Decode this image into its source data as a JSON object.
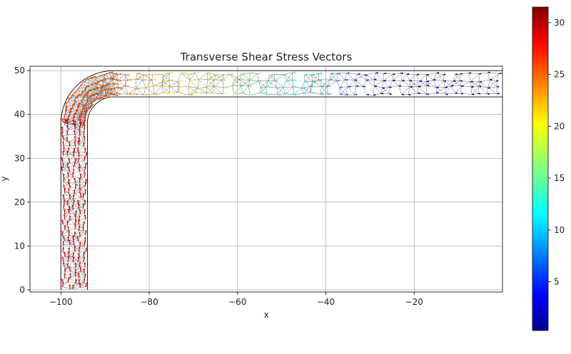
{
  "chart_data": {
    "type": "vector-field",
    "title": "Transverse Shear Stress Vectors",
    "xlabel": "x",
    "ylabel": "y",
    "xlim": [
      -107,
      0
    ],
    "ylim": [
      -0.5,
      51
    ],
    "x_ticks": [
      -100,
      -80,
      -60,
      -40,
      -20
    ],
    "y_ticks": [
      0,
      10,
      20,
      30,
      40,
      50
    ],
    "grid": true,
    "geometry": {
      "vertical_leg": {
        "x_outer": -100,
        "x_inner": -94,
        "y_from": 0,
        "y_to": 38
      },
      "horizontal_leg": {
        "y_inner": 44,
        "y_outer": 50,
        "x_from": -88,
        "x_to": 0
      },
      "bend_center": [
        -88,
        38
      ],
      "bend_inner_radius": 6,
      "bend_outer_radius": 12
    },
    "magnitude_profile": [
      {
        "position": "vertical leg (y 0-38)",
        "value": 29
      },
      {
        "position": "bend",
        "value": 25
      },
      {
        "position": "x = -80",
        "value": 21
      },
      {
        "position": "x = -65",
        "value": 18
      },
      {
        "position": "x = -50",
        "value": 13
      },
      {
        "position": "x = -40",
        "value": 10
      },
      {
        "position": "x = -30",
        "value": 3
      },
      {
        "position": "x = 0",
        "value": 0.5
      }
    ],
    "colorbar": {
      "colormap": "jet",
      "min": 0.3,
      "max": 31.5,
      "ticks": [
        5,
        10,
        15,
        20,
        25,
        30
      ]
    }
  }
}
